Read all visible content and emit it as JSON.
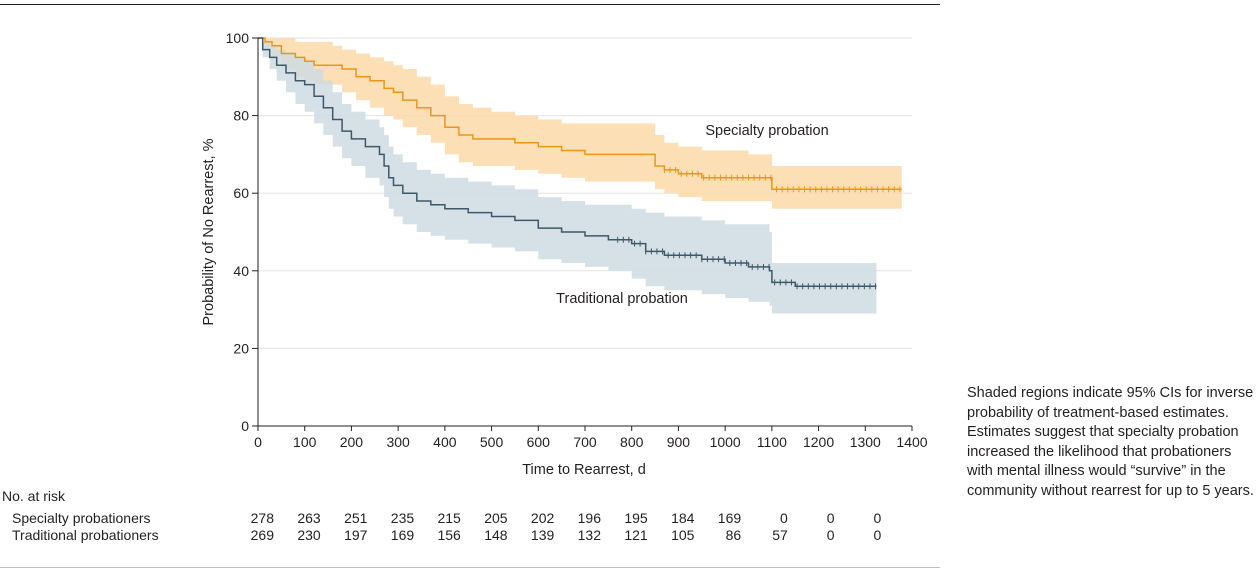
{
  "caption": "Shaded regions indicate 95% CIs for inverse probability of treatment-based estimates. Estimates suggest that specialty probation increased the likelihood that probationers with mental illness would “survive” in the community without rearrest for up to 5 years.",
  "risk_table": {
    "header": "No. at risk",
    "rows": [
      {
        "label": "Specialty probationers",
        "values": [
          "278",
          "263",
          "251",
          "235",
          "215",
          "205",
          "202",
          "196",
          "195",
          "184",
          "169",
          "0",
          "0",
          "0"
        ]
      },
      {
        "label": "Traditional probationers",
        "values": [
          "269",
          "230",
          "197",
          "169",
          "156",
          "148",
          "139",
          "132",
          "121",
          "105",
          "86",
          "57",
          "0",
          "0"
        ]
      }
    ]
  },
  "chart_data": {
    "type": "line",
    "subtype": "kaplan-meier survival curve with 95% CI bands",
    "title": "",
    "xlabel": "Time to Rearrest, d",
    "ylabel": "Probability of No Rearrest, %",
    "xlim": [
      0,
      1400
    ],
    "ylim": [
      0,
      100
    ],
    "xticks": [
      0,
      100,
      200,
      300,
      400,
      500,
      600,
      700,
      800,
      900,
      1000,
      1100,
      1200,
      1300,
      1400
    ],
    "yticks": [
      0,
      20,
      40,
      60,
      80,
      100
    ],
    "grid": "horizontal",
    "series": [
      {
        "name": "Specialty probation",
        "color": "#e8971e",
        "band_color": "#fbd9a8",
        "x": [
          0,
          15,
          30,
          50,
          80,
          100,
          120,
          160,
          180,
          210,
          240,
          270,
          290,
          310,
          340,
          370,
          400,
          430,
          460,
          500,
          550,
          600,
          650,
          700,
          750,
          800,
          850,
          870,
          900,
          950,
          1000,
          1050,
          1099,
          1100,
          1150,
          1200,
          1250,
          1300,
          1378
        ],
        "y": [
          100,
          99,
          98,
          96,
          95,
          94,
          93,
          93,
          92,
          90,
          89,
          87,
          86,
          84,
          82,
          80,
          77,
          75,
          74,
          74,
          73,
          72,
          71,
          70,
          70,
          70,
          67,
          66,
          65,
          64,
          64,
          64,
          64,
          61,
          61,
          61,
          61,
          61,
          61
        ],
        "ci_lower": [
          100,
          97,
          95,
          92,
          90,
          89,
          88,
          88,
          86,
          84,
          82,
          80,
          79,
          77,
          75,
          73,
          70,
          68,
          67,
          67,
          66,
          65,
          64,
          63,
          63,
          63,
          61,
          60,
          59,
          58,
          58,
          58,
          58,
          56,
          56,
          56,
          56,
          56,
          56
        ],
        "ci_upper": [
          100,
          100,
          100,
          100,
          99,
          99,
          99,
          98,
          97,
          96,
          95,
          94,
          93,
          92,
          90,
          88,
          85,
          83,
          82,
          81,
          80,
          79,
          78,
          78,
          78,
          78,
          75,
          73,
          72,
          71,
          71,
          70,
          70,
          67,
          67,
          67,
          67,
          67,
          67
        ],
        "label": "Specialty probation"
      },
      {
        "name": "Traditional probation",
        "color": "#3d5868",
        "band_color": "#cfdce3",
        "x": [
          0,
          10,
          25,
          40,
          60,
          80,
          100,
          120,
          140,
          160,
          180,
          200,
          230,
          260,
          270,
          280,
          290,
          310,
          340,
          370,
          400,
          450,
          500,
          550,
          600,
          650,
          700,
          750,
          800,
          830,
          870,
          900,
          950,
          1000,
          1050,
          1095,
          1100,
          1150,
          1200,
          1250,
          1300,
          1324
        ],
        "y": [
          100,
          97,
          95,
          93,
          91,
          89,
          88,
          85,
          82,
          79,
          76,
          74,
          72,
          70,
          67,
          64,
          62,
          60,
          58,
          57,
          56,
          55,
          54,
          53,
          51,
          50,
          49,
          48,
          47,
          45,
          44,
          44,
          43,
          42,
          41,
          40,
          37,
          36,
          36,
          36,
          36,
          36
        ],
        "ci_lower": [
          100,
          95,
          92,
          89,
          86,
          83,
          81,
          78,
          75,
          72,
          69,
          67,
          64,
          62,
          59,
          56,
          54,
          52,
          50,
          49,
          48,
          47,
          46,
          45,
          43,
          42,
          41,
          40,
          38,
          36,
          35,
          35,
          34,
          33,
          32,
          31,
          29,
          29,
          29,
          29,
          29,
          29
        ],
        "ci_upper": [
          100,
          99,
          98,
          97,
          96,
          95,
          94,
          92,
          89,
          86,
          83,
          81,
          79,
          77,
          75,
          72,
          70,
          68,
          66,
          65,
          64,
          63,
          62,
          61,
          59,
          58,
          57,
          57,
          56,
          55,
          54,
          54,
          53,
          52,
          52,
          50,
          42,
          42,
          42,
          42,
          42,
          42
        ],
        "label": "Traditional probation"
      }
    ]
  }
}
